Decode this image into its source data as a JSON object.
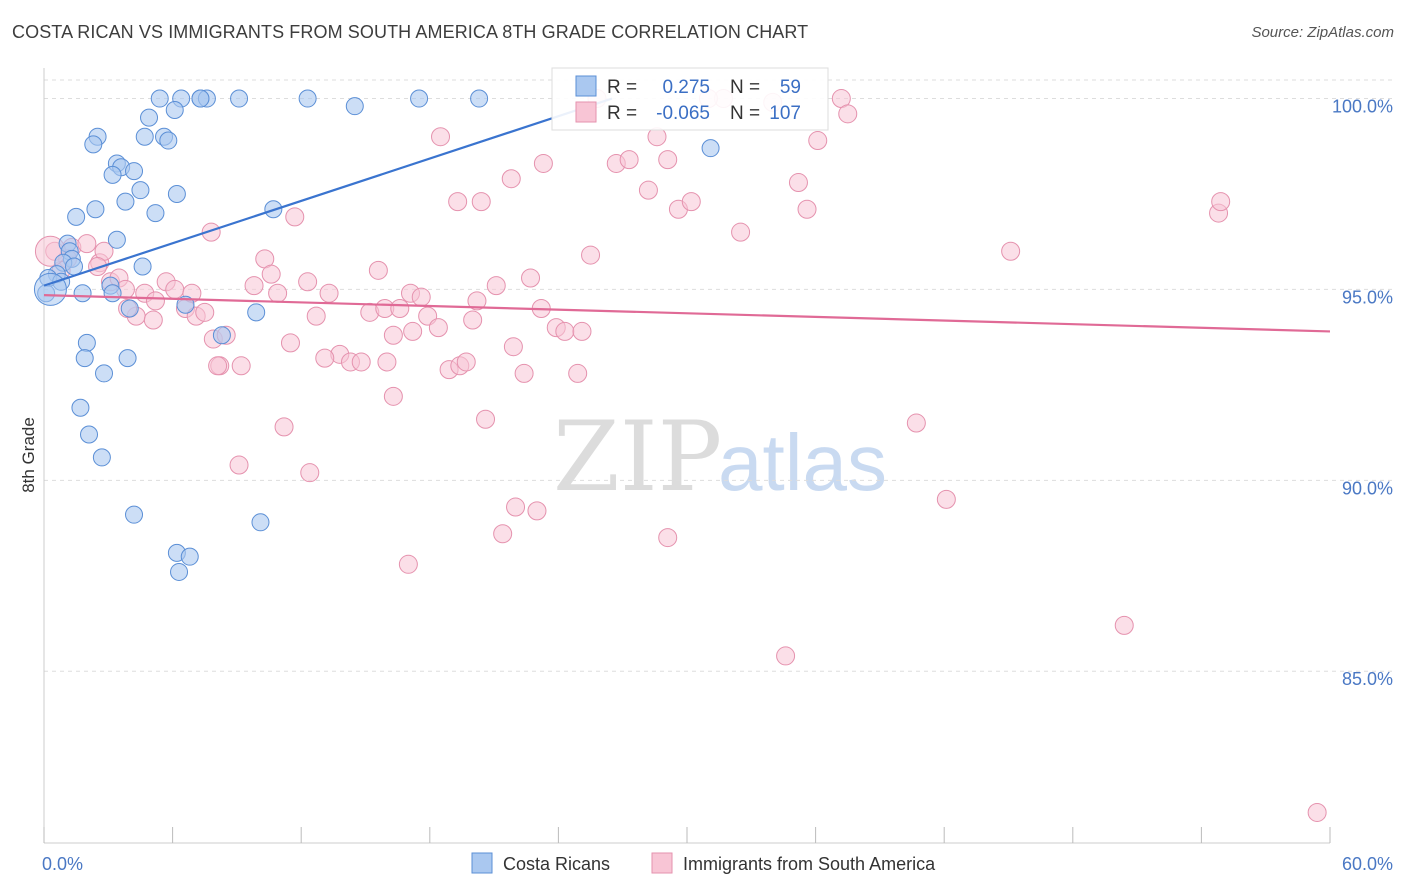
{
  "title": "COSTA RICAN VS IMMIGRANTS FROM SOUTH AMERICA 8TH GRADE CORRELATION CHART",
  "source": "Source: ZipAtlas.com",
  "watermark": {
    "zip": "ZIP",
    "atlas": "atlas"
  },
  "colors": {
    "blue_fill": "#aac8f0",
    "blue_stroke": "#5b8fd6",
    "blue_line": "#3a74cf",
    "pink_fill": "#f8c5d5",
    "pink_stroke": "#e592ae",
    "pink_line": "#e06a96",
    "grid": "#dddddd",
    "tick_text": "#4a78c4"
  },
  "legend": {
    "r_label": "R =",
    "n_label": "N =",
    "series1": {
      "r": "0.275",
      "n": "59"
    },
    "series2": {
      "r": "-0.065",
      "n": "107"
    }
  },
  "chart_data": {
    "type": "scatter",
    "title": "COSTA RICAN VS IMMIGRANTS FROM SOUTH AMERICA 8TH GRADE CORRELATION CHART",
    "xlabel": "",
    "ylabel": "8th Grade",
    "xlim": [
      0,
      60
    ],
    "ylim": [
      80.5,
      100.8
    ],
    "x_tick_labels": {
      "min": "0.0%",
      "max": "60.0%"
    },
    "y_ticks": [
      100,
      95,
      90,
      85
    ],
    "y_tick_labels": [
      "100.0%",
      "95.0%",
      "90.0%",
      "85.0%"
    ],
    "grid": true,
    "legend_position": "top-center",
    "series": [
      {
        "name": "Costa Ricans",
        "color": "#aac8f0",
        "trend": {
          "x": [
            0,
            26.5
          ],
          "y": [
            95.1,
            100.0
          ]
        },
        "points": [
          [
            5.4,
            100
          ],
          [
            6.4,
            100
          ],
          [
            7.3,
            100
          ],
          [
            7.6,
            100
          ],
          [
            9.1,
            100
          ],
          [
            12.3,
            100
          ],
          [
            14.5,
            99.8
          ],
          [
            17.5,
            100
          ],
          [
            20.3,
            100
          ],
          [
            7.3,
            100
          ],
          [
            6.1,
            99.7
          ],
          [
            4.9,
            99.5
          ],
          [
            2.5,
            99
          ],
          [
            4.7,
            99
          ],
          [
            5.6,
            99
          ],
          [
            5.8,
            98.9
          ],
          [
            2.3,
            98.8
          ],
          [
            3.4,
            98.3
          ],
          [
            3.6,
            98.2
          ],
          [
            4.2,
            98.1
          ],
          [
            3.2,
            98
          ],
          [
            4.5,
            97.6
          ],
          [
            6.2,
            97.5
          ],
          [
            3.8,
            97.3
          ],
          [
            2.4,
            97.1
          ],
          [
            5.2,
            97.0
          ],
          [
            1.5,
            96.9
          ],
          [
            10.7,
            97.1
          ],
          [
            3.4,
            96.3
          ],
          [
            1.1,
            96.2
          ],
          [
            1.2,
            96
          ],
          [
            1.3,
            95.8
          ],
          [
            0.9,
            95.7
          ],
          [
            1.4,
            95.6
          ],
          [
            4.6,
            95.6
          ],
          [
            0.6,
            95.4
          ],
          [
            0.2,
            95.3
          ],
          [
            0.8,
            95.2
          ],
          [
            3.1,
            95.1
          ],
          [
            3.2,
            94.9
          ],
          [
            1.8,
            94.9
          ],
          [
            0.1,
            94.9
          ],
          [
            6.6,
            94.6
          ],
          [
            4.0,
            94.5
          ],
          [
            9.9,
            94.4
          ],
          [
            8.3,
            93.8
          ],
          [
            2.0,
            93.6
          ],
          [
            3.9,
            93.2
          ],
          [
            1.9,
            93.2
          ],
          [
            2.8,
            92.8
          ],
          [
            1.7,
            91.9
          ],
          [
            2.1,
            91.2
          ],
          [
            2.7,
            90.6
          ],
          [
            4.2,
            89.1
          ],
          [
            10.1,
            88.9
          ],
          [
            6.2,
            88.1
          ],
          [
            6.8,
            88
          ],
          [
            6.3,
            87.6
          ],
          [
            31.1,
            98.7
          ]
        ]
      },
      {
        "name": "Immigrants from South America",
        "color": "#f8c5d5",
        "trend": {
          "x": [
            0,
            60
          ],
          "y": [
            94.85,
            93.9
          ]
        },
        "points": [
          [
            0.5,
            96
          ],
          [
            1.3,
            96.1
          ],
          [
            2.6,
            95.7
          ],
          [
            2.8,
            96
          ],
          [
            3.1,
            95.2
          ],
          [
            3.5,
            95.3
          ],
          [
            3.8,
            95
          ],
          [
            4.3,
            94.3
          ],
          [
            4.7,
            94.9
          ],
          [
            5.2,
            94.7
          ],
          [
            5.7,
            95.2
          ],
          [
            6.1,
            95
          ],
          [
            6.6,
            94.5
          ],
          [
            7.1,
            94.3
          ],
          [
            7.5,
            94.4
          ],
          [
            7.9,
            93.7
          ],
          [
            8.2,
            93
          ],
          [
            8.5,
            93.8
          ],
          [
            9.2,
            93.0
          ],
          [
            9.8,
            95.1
          ],
          [
            10.3,
            95.8
          ],
          [
            10.6,
            95.4
          ],
          [
            10.9,
            94.9
          ],
          [
            11.5,
            93.6
          ],
          [
            12.3,
            95.2
          ],
          [
            12.7,
            94.3
          ],
          [
            13.3,
            94.9
          ],
          [
            13.8,
            93.3
          ],
          [
            14.3,
            93.1
          ],
          [
            14.8,
            93.1
          ],
          [
            15.2,
            94.4
          ],
          [
            15.6,
            95.5
          ],
          [
            15.9,
            94.5
          ],
          [
            16.3,
            93.8
          ],
          [
            16.6,
            94.5
          ],
          [
            17.1,
            94.9
          ],
          [
            17.6,
            94.8
          ],
          [
            17.9,
            94.3
          ],
          [
            18.4,
            94.0
          ],
          [
            18.9,
            92.9
          ],
          [
            19.4,
            93.0
          ],
          [
            19.7,
            93.1
          ],
          [
            20.2,
            94.7
          ],
          [
            20.6,
            91.6
          ],
          [
            21.1,
            95.1
          ],
          [
            21.9,
            93.5
          ],
          [
            22.4,
            92.8
          ],
          [
            22.7,
            95.3
          ],
          [
            23.2,
            94.5
          ],
          [
            23.9,
            94.0
          ],
          [
            24.3,
            93.9
          ],
          [
            25.1,
            93.9
          ],
          [
            25.5,
            95.9
          ],
          [
            26.7,
            98.3
          ],
          [
            27.3,
            98.4
          ],
          [
            28.2,
            97.6
          ],
          [
            28.6,
            99.0
          ],
          [
            29.1,
            98.4
          ],
          [
            29.6,
            97.1
          ],
          [
            30.2,
            97.3
          ],
          [
            31.7,
            100
          ],
          [
            32.5,
            96.5
          ],
          [
            34.0,
            99.9
          ],
          [
            35.2,
            97.8
          ],
          [
            35.6,
            97.1
          ],
          [
            36.1,
            98.9
          ],
          [
            37.2,
            100
          ],
          [
            37.5,
            99.6
          ],
          [
            40.7,
            91.5
          ],
          [
            42.1,
            89.5
          ],
          [
            45.1,
            96.0
          ],
          [
            50.4,
            86.2
          ],
          [
            54.8,
            97.0
          ],
          [
            54.9,
            97.3
          ],
          [
            59.4,
            81.3
          ],
          [
            34.6,
            85.4
          ],
          [
            29.1,
            88.5
          ],
          [
            22.0,
            89.3
          ],
          [
            21.4,
            88.6
          ],
          [
            23.0,
            89.2
          ],
          [
            17.0,
            87.8
          ],
          [
            12.4,
            90.2
          ],
          [
            9.1,
            90.4
          ],
          [
            11.2,
            91.4
          ],
          [
            16.3,
            92.2
          ],
          [
            18.5,
            99.0
          ],
          [
            19.3,
            97.3
          ],
          [
            20.4,
            97.3
          ],
          [
            21.8,
            97.9
          ],
          [
            23.3,
            98.3
          ],
          [
            11.7,
            96.9
          ],
          [
            7.8,
            96.5
          ],
          [
            2.0,
            96.2
          ],
          [
            1.1,
            95.8
          ],
          [
            0.8,
            95.5
          ],
          [
            25.8,
            100
          ],
          [
            3.9,
            94.5
          ],
          [
            5.1,
            94.2
          ],
          [
            6.9,
            94.9
          ],
          [
            2.5,
            95.6
          ],
          [
            8.1,
            93.0
          ],
          [
            13.1,
            93.2
          ],
          [
            17.2,
            93.9
          ],
          [
            24.9,
            92.8
          ],
          [
            16.0,
            93.1
          ],
          [
            20.0,
            94.2
          ],
          [
            31.0,
            100
          ]
        ]
      }
    ]
  },
  "bottom_legend": {
    "series1": "Costa Ricans",
    "series2": "Immigrants from South America"
  }
}
